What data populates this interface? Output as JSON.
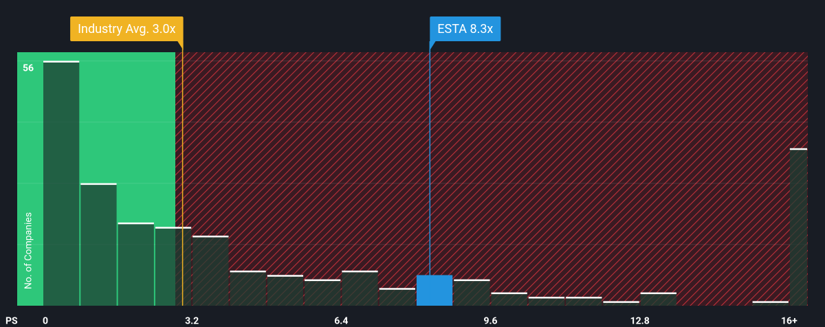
{
  "chart_data": {
    "type": "histogram",
    "x_label": "PS",
    "y_label": "No. of Companies",
    "bins": [
      0,
      0.8,
      1.6,
      2.4,
      3.2,
      4.0,
      4.8,
      5.6,
      6.4,
      7.2,
      8.0,
      8.8,
      9.6,
      10.4,
      11.2,
      12.0,
      12.8,
      13.6,
      14.4,
      15.2,
      16.0,
      16.4
    ],
    "values": [
      56,
      28,
      19,
      18,
      16,
      8,
      7,
      6,
      8,
      4,
      7,
      6,
      3,
      2,
      2,
      1,
      3,
      0,
      0,
      1,
      36
    ],
    "color": "#1d3d33",
    "xlim": [
      0,
      16.4
    ],
    "ylim": [
      0,
      58
    ],
    "xticks": [
      0,
      3.2,
      6.4,
      9.6,
      12.8,
      {
        "value": 16,
        "label": "16+"
      }
    ],
    "yticks": [
      56
    ],
    "ygrid": [
      14,
      28,
      42
    ],
    "annotations": [
      {
        "text": "Industry Avg. 3.0x",
        "x": 3.0,
        "color": "#f0b323",
        "highlight": false
      },
      {
        "text": "ESTA 8.3x",
        "x": 8.3,
        "color": "#2394df",
        "highlight": true
      }
    ]
  }
}
